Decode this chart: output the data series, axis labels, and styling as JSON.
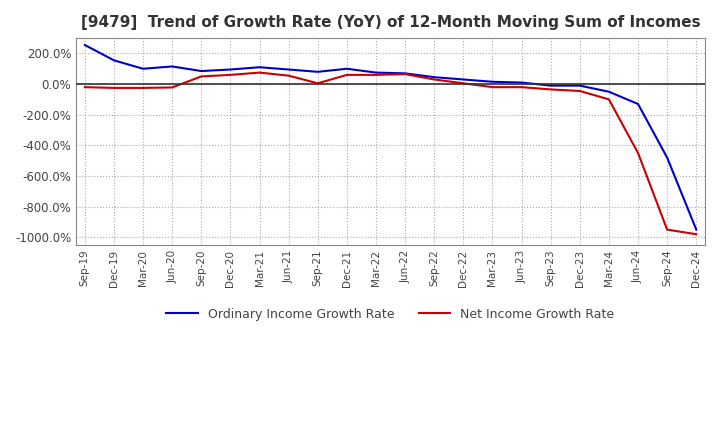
{
  "title": "[9479]  Trend of Growth Rate (YoY) of 12-Month Moving Sum of Incomes",
  "legend_labels": [
    "Ordinary Income Growth Rate",
    "Net Income Growth Rate"
  ],
  "line_colors": [
    "#0000cc",
    "#cc0000"
  ],
  "ylim": [
    -1050,
    300
  ],
  "yticks": [
    200,
    0,
    -200,
    -400,
    -600,
    -800,
    -1000
  ],
  "background_color": "#ffffff",
  "grid_color": "#aaaaaa",
  "dates": [
    "Sep-19",
    "Dec-19",
    "Mar-20",
    "Jun-20",
    "Sep-20",
    "Dec-20",
    "Mar-21",
    "Jun-21",
    "Sep-21",
    "Dec-21",
    "Mar-22",
    "Jun-22",
    "Sep-22",
    "Dec-22",
    "Mar-23",
    "Jun-23",
    "Sep-23",
    "Dec-23",
    "Mar-24",
    "Jun-24",
    "Sep-24",
    "Dec-24"
  ],
  "ordinary_income": [
    255,
    155,
    100,
    115,
    85,
    95,
    110,
    95,
    80,
    100,
    75,
    70,
    45,
    30,
    15,
    10,
    -10,
    -10,
    -50,
    -130,
    -480,
    -950
  ],
  "net_income": [
    -20,
    -25,
    -25,
    -22,
    50,
    60,
    75,
    55,
    5,
    60,
    60,
    65,
    30,
    5,
    -20,
    -20,
    -35,
    -45,
    -100,
    -450,
    -950,
    -980
  ]
}
